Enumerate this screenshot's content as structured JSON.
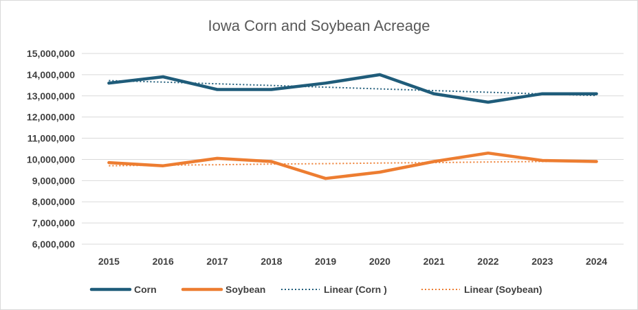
{
  "chart_data": {
    "type": "line",
    "title": "Iowa Corn and Soybean Acreage",
    "xlabel": "",
    "ylabel": "",
    "categories": [
      "2015",
      "2016",
      "2017",
      "2018",
      "2019",
      "2020",
      "2021",
      "2022",
      "2023",
      "2024"
    ],
    "ylim": [
      6000000,
      15000000
    ],
    "y_ticks": [
      15000000,
      14000000,
      13000000,
      12000000,
      11000000,
      10000000,
      9000000,
      8000000,
      7000000,
      6000000
    ],
    "y_tick_labels": [
      "15,000,000",
      "14,000,000",
      "13,000,000",
      "12,000,000",
      "11,000,000",
      "10,000,000",
      "9,000,000",
      "8,000,000",
      "7,000,000",
      "6,000,000"
    ],
    "grid": true,
    "legend_position": "bottom",
    "series": [
      {
        "name": "Corn",
        "color": "#1f5c7a",
        "style": "solid",
        "values": [
          13600000,
          13900000,
          13300000,
          13300000,
          13600000,
          14000000,
          13100000,
          12700000,
          13100000,
          13100000
        ]
      },
      {
        "name": "Soybean",
        "color": "#ed7d31",
        "style": "solid",
        "values": [
          9850000,
          9700000,
          10050000,
          9900000,
          9100000,
          9400000,
          9900000,
          10300000,
          9950000,
          9900000
        ]
      },
      {
        "name": "Linear (Corn )",
        "color": "#1f5c7a",
        "style": "dotted",
        "values": [
          13720000,
          13650000,
          13570000,
          13490000,
          13410000,
          13330000,
          13250000,
          13170000,
          13090000,
          13020000
        ]
      },
      {
        "name": "Linear (Soybean)",
        "color": "#ed7d31",
        "style": "dotted",
        "values": [
          9700000,
          9730000,
          9750000,
          9780000,
          9800000,
          9830000,
          9850000,
          9880000,
          9900000,
          9920000
        ]
      }
    ]
  }
}
